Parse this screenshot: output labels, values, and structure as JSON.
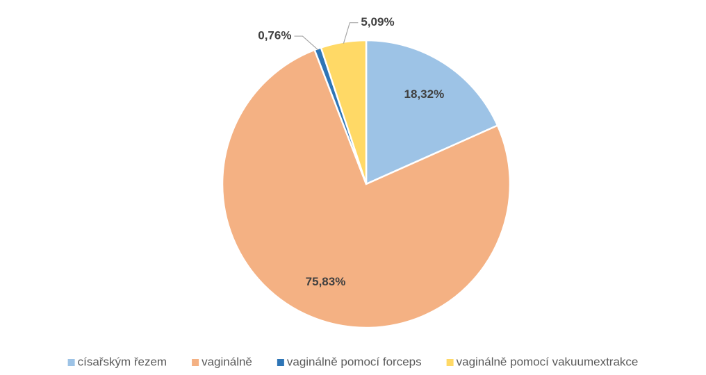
{
  "chart_data": {
    "type": "pie",
    "categories": [
      "císařským řezem",
      "vaginálně",
      "vaginálně pomocí forceps",
      "vaginálně pomocí vakuumextrakce"
    ],
    "values": [
      18.32,
      75.83,
      0.76,
      5.09
    ],
    "value_labels": [
      "18,32%",
      "75,83%",
      "0,76%",
      "5,09%"
    ],
    "colors": [
      "#9dc3e6",
      "#f4b183",
      "#2e75b6",
      "#ffd966"
    ],
    "legend": "bottom"
  }
}
